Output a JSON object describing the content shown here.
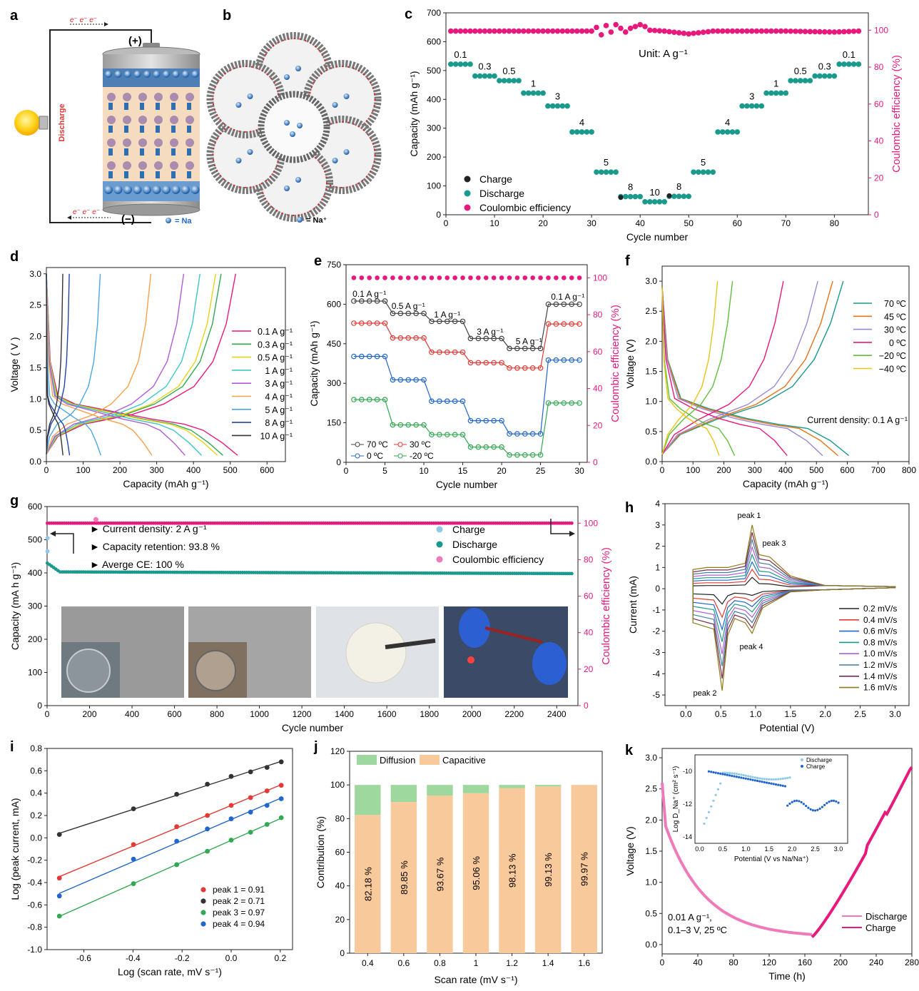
{
  "colors": {
    "black": "#222222",
    "teal": "#1a9a8c",
    "pink": "#e8197d",
    "red": "#e23a36",
    "blue": "#2266cc",
    "green": "#33a852",
    "orange": "#f7a14a",
    "light_green": "#9ed89e",
    "light_orange": "#f8c99a",
    "light_blue": "#8ecae6",
    "light_pink": "#f07ab9"
  },
  "panels": {
    "a": {
      "letter": "a",
      "electron_top": "e⁻  e⁻  e⁻",
      "electron_bottom": "e⁻  e⁻  e⁻",
      "plus": "(+)",
      "minus": "(−)",
      "side_label": "Discharge",
      "legend": "= Na"
    },
    "b": {
      "letter": "b",
      "legend": "= Na⁺"
    },
    "c": {
      "letter": "c",
      "unit": "Unit: A g⁻¹"
    },
    "d": {
      "letter": "d"
    },
    "e": {
      "letter": "e"
    },
    "f": {
      "letter": "f",
      "annotation": "Current density: 0.1 A g⁻¹"
    },
    "g": {
      "letter": "g",
      "notes": [
        "► Current density: 2 A g⁻¹",
        "► Capacity retention: 93.8 %",
        "► Averge CE: 100 %"
      ]
    },
    "h": {
      "letter": "h",
      "peaks": [
        "peak 1",
        "peak 2",
        "peak 3",
        "peak 4"
      ]
    },
    "i": {
      "letter": "i"
    },
    "j": {
      "letter": "j"
    },
    "k": {
      "letter": "k",
      "annotation_line1": "0.01 A g⁻¹,",
      "annotation_line2": "0.1–3 V, 25 ºC",
      "inset_xlabel": "Potential (V vs Na/Na⁺)",
      "inset_ylabel": "Log D_Na⁺ (cm² s⁻¹)",
      "inset_legend": [
        "Discharge",
        "Charge"
      ]
    }
  },
  "chart_data": [
    {
      "id": "c",
      "type": "scatter",
      "xlabel": "Cycle number",
      "ylabel": "Capacity (mAh g⁻¹)",
      "y2label": "Coulombic efficiency (%)",
      "xlim": [
        0,
        87
      ],
      "ylim": [
        0,
        700
      ],
      "y2lim": [
        0,
        109.4
      ],
      "xticks": [
        0,
        10,
        20,
        30,
        40,
        50,
        60,
        70,
        80
      ],
      "yticks": [
        0,
        100,
        200,
        300,
        400,
        500,
        600,
        700
      ],
      "y2ticks": [
        0,
        20,
        40,
        60,
        80,
        100
      ],
      "steps": [
        {
          "rate": "0.1",
          "from": 1,
          "to": 5,
          "capacity": 522
        },
        {
          "rate": "0.3",
          "from": 6,
          "to": 10,
          "capacity": 481
        },
        {
          "rate": "0.5",
          "from": 11,
          "to": 15,
          "capacity": 465
        },
        {
          "rate": "1",
          "from": 16,
          "to": 20,
          "capacity": 422
        },
        {
          "rate": "3",
          "from": 21,
          "to": 25,
          "capacity": 377
        },
        {
          "rate": "4",
          "from": 26,
          "to": 30,
          "capacity": 287
        },
        {
          "rate": "5",
          "from": 31,
          "to": 35,
          "capacity": 148
        },
        {
          "rate": "8",
          "from": 36,
          "to": 40,
          "capacity": 63
        },
        {
          "rate": "10",
          "from": 41,
          "to": 45,
          "capacity": 45
        },
        {
          "rate": "8",
          "from": 46,
          "to": 50,
          "capacity": 64
        },
        {
          "rate": "5",
          "from": 51,
          "to": 55,
          "capacity": 148
        },
        {
          "rate": "4",
          "from": 56,
          "to": 60,
          "capacity": 287
        },
        {
          "rate": "3",
          "from": 61,
          "to": 65,
          "capacity": 377
        },
        {
          "rate": "1",
          "from": 66,
          "to": 70,
          "capacity": 422
        },
        {
          "rate": "0.5",
          "from": 71,
          "to": 75,
          "capacity": 465
        },
        {
          "rate": "0.3",
          "from": 76,
          "to": 80,
          "capacity": 481
        },
        {
          "rate": "0.1",
          "from": 81,
          "to": 85,
          "capacity": 522
        }
      ],
      "ce": {
        "x": [
          1,
          5,
          10,
          15,
          20,
          25,
          30,
          31,
          32,
          33,
          34,
          35,
          36,
          37,
          38,
          39,
          40,
          41,
          42,
          45,
          50,
          55,
          60,
          70,
          80,
          85
        ],
        "y": [
          99.5,
          99.5,
          99.5,
          99.5,
          99.5,
          99.5,
          99.5,
          101.5,
          97.5,
          102.5,
          99,
          103,
          101,
          99,
          101,
          102,
          103,
          102,
          100,
          99.5,
          98,
          99.5,
          99.5,
          99.5,
          99,
          99.5
        ]
      },
      "legend": [
        "Charge",
        "Discharge",
        "Coulombic efficiency"
      ]
    },
    {
      "id": "d",
      "type": "line",
      "xlabel": "Capacity (mAh g⁻¹)",
      "ylabel": "Voltage ( V )",
      "xlim": [
        0,
        650
      ],
      "ylim": [
        0,
        3.1
      ],
      "xticks": [
        0,
        100,
        200,
        300,
        400,
        500,
        600
      ],
      "yticks": [
        0.0,
        0.5,
        1.0,
        1.5,
        2.0,
        2.5,
        3.0
      ],
      "series": [
        {
          "name": "0.1 A g⁻¹",
          "color": "#e8197d",
          "cap": 520
        },
        {
          "name": "0.3 A g⁻¹",
          "color": "#33a852",
          "cap": 480
        },
        {
          "name": "0.5 A g⁻¹",
          "color": "#e8d31a",
          "cap": 465
        },
        {
          "name": "1 A g⁻¹",
          "color": "#3cc7c7",
          "cap": 422
        },
        {
          "name": "3 A g⁻¹",
          "color": "#b05cd6",
          "cap": 377
        },
        {
          "name": "4 A g⁻¹",
          "color": "#f7a14a",
          "cap": 287
        },
        {
          "name": "5 A g⁻¹",
          "color": "#4aa8e0",
          "cap": 148
        },
        {
          "name": "8 A g⁻¹",
          "color": "#2244aa",
          "cap": 63
        },
        {
          "name": "10 A g⁻¹",
          "color": "#333333",
          "cap": 45
        }
      ]
    },
    {
      "id": "e",
      "type": "scatter",
      "xlabel": "Cycle number",
      "ylabel": "Capacity (mAh g⁻¹)",
      "y2label": "Coulombic efficiency (%)",
      "xlim": [
        0,
        31
      ],
      "ylim": [
        0,
        750
      ],
      "y2lim": [
        0,
        107.1
      ],
      "xticks": [
        0,
        5,
        10,
        15,
        20,
        25,
        30
      ],
      "yticks": [
        0,
        150,
        300,
        450,
        600,
        750
      ],
      "y2ticks": [
        0,
        20,
        40,
        60,
        80,
        100
      ],
      "rate_labels": [
        {
          "text": "0.1 A g⁻¹",
          "x": 3,
          "y": 628
        },
        {
          "text": "0.5 A g⁻¹",
          "x": 8,
          "y": 582
        },
        {
          "text": "1 A g⁻¹",
          "x": 13,
          "y": 550
        },
        {
          "text": "3 A g⁻¹",
          "x": 18.5,
          "y": 485
        },
        {
          "text": "5 A g⁻¹",
          "x": 23.5,
          "y": 448
        },
        {
          "text": "0.1 A g⁻¹",
          "x": 28.5,
          "y": 618
        }
      ],
      "series": [
        {
          "name": "70 ºC",
          "color": "#444444",
          "levels": [
            612,
            565,
            535,
            470,
            432,
            600
          ]
        },
        {
          "name": "30 ºC",
          "color": "#e23a36",
          "levels": [
            528,
            472,
            418,
            378,
            358,
            525
          ]
        },
        {
          "name": "0 ºC",
          "color": "#2266cc",
          "levels": [
            402,
            313,
            232,
            158,
            108,
            388
          ]
        },
        {
          "name": "-20 ºC",
          "color": "#33a852",
          "levels": [
            238,
            142,
            105,
            58,
            28,
            225
          ]
        }
      ],
      "ce": 100
    },
    {
      "id": "f",
      "type": "line",
      "xlabel": "Capacity (mAh g⁻¹)",
      "ylabel": "Voltage (V)",
      "xlim": [
        0,
        800
      ],
      "ylim": [
        0,
        3.25
      ],
      "xticks": [
        0,
        100,
        200,
        300,
        400,
        500,
        600,
        700,
        800
      ],
      "yticks": [
        0.0,
        0.5,
        1.0,
        1.5,
        2.0,
        2.5,
        3.0
      ],
      "series": [
        {
          "name": "70 ºC",
          "color": "#1a9a8c",
          "cap": 605
        },
        {
          "name": "45 ºC",
          "color": "#e8731a",
          "cap": 570
        },
        {
          "name": "30 ºC",
          "color": "#9c88d6",
          "cap": 520
        },
        {
          "name": "0 ºC",
          "color": "#e8197d",
          "cap": 405
        },
        {
          "name": "−20 ºC",
          "color": "#5fbf3a",
          "cap": 235
        },
        {
          "name": "−40 ºC",
          "color": "#e8c41a",
          "cap": 185
        }
      ]
    },
    {
      "id": "g",
      "type": "scatter",
      "xlabel": "Cycle number",
      "ylabel": "Capacity (mA h g⁻¹)",
      "y2label": "Coulombic efficiency (%)",
      "xlim": [
        0,
        2500
      ],
      "ylim": [
        0,
        600
      ],
      "y2lim": [
        0,
        109.1
      ],
      "xticks": [
        0,
        200,
        400,
        600,
        800,
        1000,
        1200,
        1400,
        1600,
        1800,
        2000,
        2200,
        2400
      ],
      "yticks": [
        0,
        100,
        200,
        300,
        400,
        500,
        600
      ],
      "y2ticks": [
        0,
        20,
        40,
        60,
        80,
        100
      ],
      "capacity": {
        "start": 430,
        "plateau": 403,
        "end": 398
      },
      "ce": 100,
      "legend": [
        "Charge",
        "Discharge",
        "Coulombic efficiency"
      ]
    },
    {
      "id": "h",
      "type": "line",
      "xlabel": "Potential (V)",
      "ylabel": "Current (mA)",
      "xlim": [
        -0.3,
        3.2
      ],
      "ylim": [
        -5.5,
        4
      ],
      "xticks": [
        0.0,
        0.5,
        1.0,
        1.5,
        2.0,
        2.5,
        3.0
      ],
      "yticks": [
        -5,
        -4,
        -3,
        -2,
        -1,
        0,
        1,
        2,
        3,
        4
      ],
      "series": [
        {
          "name": "0.2 mV/s",
          "color": "#222222",
          "scale": 0.15
        },
        {
          "name": "0.4 mV/s",
          "color": "#e23a36",
          "scale": 0.28
        },
        {
          "name": "0.6 mV/s",
          "color": "#2266cc",
          "scale": 0.4
        },
        {
          "name": "0.8 mV/s",
          "color": "#1a9a8c",
          "scale": 0.52
        },
        {
          "name": "1.0 mV/s",
          "color": "#b05cd6",
          "scale": 0.64
        },
        {
          "name": "1.2 mV/s",
          "color": "#3f7f9f",
          "scale": 0.76
        },
        {
          "name": "1.4 mV/s",
          "color": "#7a2a4a",
          "scale": 0.88
        },
        {
          "name": "1.6 mV/s",
          "color": "#8c7a1a",
          "scale": 1.0
        }
      ]
    },
    {
      "id": "i",
      "type": "scatter",
      "xlabel": "Log (scan rate, mV s⁻¹)",
      "ylabel": "Log (peak current, mA)",
      "xlim": [
        -0.75,
        0.25
      ],
      "ylim": [
        -1.0,
        0.8
      ],
      "xticks": [
        -0.6,
        -0.4,
        -0.2,
        0.0,
        0.2
      ],
      "yticks": [
        -1.0,
        -0.8,
        -0.6,
        -0.4,
        -0.2,
        0.0,
        0.2,
        0.4,
        0.6,
        0.8
      ],
      "x": [
        -0.7,
        -0.398,
        -0.222,
        -0.097,
        0.0,
        0.079,
        0.146,
        0.204
      ],
      "series": [
        {
          "name": "peak 1 = 0.91",
          "color": "#e23a36",
          "y": [
            -0.36,
            -0.06,
            0.1,
            0.2,
            0.29,
            0.36,
            0.42,
            0.47
          ]
        },
        {
          "name": "peak 2 = 0.71",
          "color": "#333333",
          "y": [
            0.03,
            0.26,
            0.39,
            0.48,
            0.55,
            0.59,
            0.63,
            0.68
          ]
        },
        {
          "name": "peak 3 = 0.97",
          "color": "#33a852",
          "y": [
            -0.7,
            -0.41,
            -0.24,
            -0.12,
            -0.02,
            0.05,
            0.12,
            0.18
          ]
        },
        {
          "name": "peak 4 = 0.94",
          "color": "#2266cc",
          "y": [
            -0.52,
            -0.19,
            -0.03,
            0.08,
            0.17,
            0.23,
            0.29,
            0.35
          ]
        }
      ]
    },
    {
      "id": "j",
      "type": "bar",
      "xlabel": "Scan rate (mV s⁻¹)",
      "ylabel": "Contribution (%)",
      "ylim": [
        0,
        120
      ],
      "yticks": [
        0,
        20,
        40,
        60,
        80,
        100,
        120
      ],
      "categories": [
        "0.4",
        "0.6",
        "0.8",
        "1",
        "1.2",
        "1.4",
        "1.6"
      ],
      "series": [
        {
          "name": "Capacitive",
          "values": [
            82.18,
            89.85,
            93.67,
            95.06,
            98.13,
            99.13,
            99.97
          ]
        },
        {
          "name": "Diffusion",
          "values": [
            17.82,
            10.15,
            6.33,
            4.94,
            1.87,
            0.87,
            0.03
          ]
        }
      ],
      "value_labels": [
        "82.18 %",
        "89.85 %",
        "93.67 %",
        "95.06 %",
        "98.13 %",
        "99.13 %",
        "99.97 %"
      ]
    },
    {
      "id": "k",
      "type": "line",
      "xlabel": "Time (h)",
      "ylabel": "Voltage (V)",
      "xlim": [
        0,
        280
      ],
      "ylim": [
        -0.15,
        3.15
      ],
      "xticks": [
        0,
        40,
        80,
        120,
        160,
        200,
        240,
        280
      ],
      "yticks": [
        0.0,
        0.5,
        1.0,
        1.5,
        2.0,
        2.5,
        3.0
      ],
      "series": [
        {
          "name": "Discharge"
        },
        {
          "name": "Charge"
        }
      ],
      "inset": {
        "xlim": [
          -0.1,
          3.2
        ],
        "ylim": [
          -14.4,
          -9.0
        ],
        "xticks": [
          0.0,
          0.5,
          1.0,
          1.5,
          2.0,
          2.5,
          3.0
        ],
        "yticks": [
          -14,
          -12,
          -10
        ]
      }
    }
  ]
}
